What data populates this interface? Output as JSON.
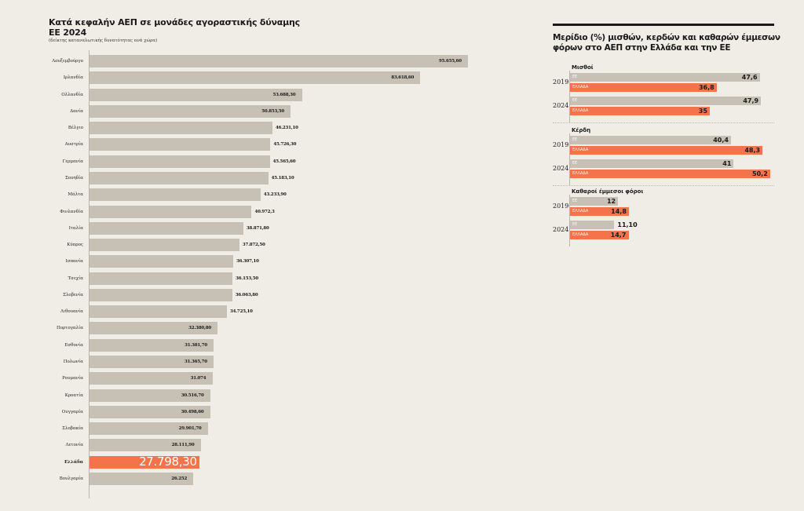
{
  "left_chart_title": "Κατά κεφαλήν ΑΕΠ σε μονάδες αγοραστικής δύναμης ΕΕ 2024",
  "left_chart_subtitle": "(δείκτης καταναλωτικής δυνατότητας ανά χώρα)",
  "right_chart_title": "Μερίδιο (%) μισθών, κερδών και καθαρών έμμεσων φόρων στο ΑΕΠ στην Ελλάδα και την ΕΕ",
  "colors": {
    "background": "#efede6",
    "bar": "#c6c0b5",
    "highlight": "#f4734a",
    "text": "#1a1a1a"
  },
  "chart_data": [
    {
      "type": "bar",
      "orientation": "horizontal",
      "title": "Κατά κεφαλήν ΑΕΠ σε μονάδες αγοραστικής δύναμης ΕΕ 2024",
      "subtitle": "(δείκτης καταναλωτικής δυνατότητας ανά χώρα)",
      "xlabel": "",
      "ylabel": "",
      "xlim": [
        0,
        95655.6
      ],
      "grid": false,
      "highlight": "Ελλάδα",
      "categories": [
        "Λουξεμβούργο",
        "Ιρλανδία",
        "Ολλανδία",
        "Δανία",
        "Βέλγιο",
        "Αυστρία",
        "Γερμανία",
        "Σουηδία",
        "Μάλτα",
        "Φινλανδία",
        "Ιταλία",
        "Κύπρος",
        "Ισπανία",
        "Τσεχία",
        "Σλοβενία",
        "Λιθουανία",
        "Πορτογαλία",
        "Εσθονία",
        "Πολωνία",
        "Ρουμανία",
        "Κροατία",
        "Ουγγαρία",
        "Σλοβακία",
        "Λετονία",
        "Ελλάδα",
        "Βουλγαρία"
      ],
      "values": [
        95655.6,
        83618.6,
        53688.3,
        50853.5,
        46231.1,
        45726.3,
        45565.6,
        45183.1,
        43233.9,
        40972.3,
        38871.8,
        37872.5,
        36307.1,
        36153.5,
        36063.8,
        34725.1,
        32380.8,
        31381.7,
        31365.7,
        31074,
        30516.7,
        30498.6,
        29901.7,
        28111.9,
        27798.3,
        26252
      ],
      "value_labels": [
        "95.655,60",
        "83.618,60",
        "53.688,30",
        "50.853,50",
        "46.231,10",
        "45.726,30",
        "45.565,60",
        "45.183,10",
        "43.233,90",
        "40.972,3",
        "38.871,80",
        "37.872,50",
        "36.307,10",
        "36.153,50",
        "36.063,80",
        "34.725,10",
        "32.380,80",
        "31.381,70",
        "31.365,70",
        "31.074",
        "30.516,70",
        "30.498,60",
        "29.901,70",
        "28.111,90",
        "27.798,30",
        "26.252"
      ]
    },
    {
      "type": "bar",
      "orientation": "horizontal",
      "title": "Μερίδιο (%) μισθών, κερδών και καθαρών έμμεσων φόρων στο ΑΕΠ στην Ελλάδα και την ΕΕ",
      "xlim": [
        0,
        50.2
      ],
      "grid": false,
      "series_names": [
        "ΕΕ",
        "ΕΛΛΑΔΑ"
      ],
      "groups": [
        {
          "name": "Μισθοί",
          "years": [
            {
              "year": "2019",
              "EU": 47.6,
              "EU_label": "47,6",
              "GR": 36.8,
              "GR_label": "36,8"
            },
            {
              "year": "2024",
              "EU": 47.9,
              "EU_label": "47,9",
              "GR": 35,
              "GR_label": "35"
            }
          ]
        },
        {
          "name": "Κέρδη",
          "years": [
            {
              "year": "2019",
              "EU": 40.4,
              "EU_label": "40,4",
              "GR": 48.3,
              "GR_label": "48,3"
            },
            {
              "year": "2024",
              "EU": 41,
              "EU_label": "41",
              "GR": 50.2,
              "GR_label": "50,2"
            }
          ]
        },
        {
          "name": "Καθαροί έμμεσοι φόροι",
          "years": [
            {
              "year": "2019",
              "EU": 12,
              "EU_label": "12",
              "GR": 14.8,
              "GR_label": "14,8"
            },
            {
              "year": "2024",
              "EU": 11.1,
              "EU_label": "11,10",
              "GR": 14.7,
              "GR_label": "14,7"
            }
          ]
        }
      ]
    }
  ]
}
